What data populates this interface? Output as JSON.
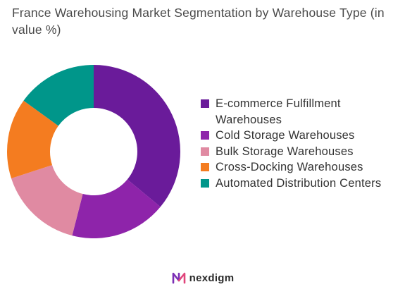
{
  "title": "France Warehousing Market Segmentation by Warehouse Type (in value %)",
  "brand": {
    "name": "nexdigm"
  },
  "chart_data": {
    "type": "pie",
    "donut": true,
    "legend_position": "right",
    "categories": [
      "E-commerce Fulfillment Warehouses",
      "Cold Storage Warehouses",
      "Bulk Storage Warehouses",
      "Cross-Docking Warehouses",
      "Automated Distribution Centers"
    ],
    "values": [
      36,
      18,
      16,
      15,
      15
    ],
    "colors": [
      "#6a1b9a",
      "#8e24aa",
      "#e08aa2",
      "#f47c20",
      "#00968a"
    ]
  }
}
